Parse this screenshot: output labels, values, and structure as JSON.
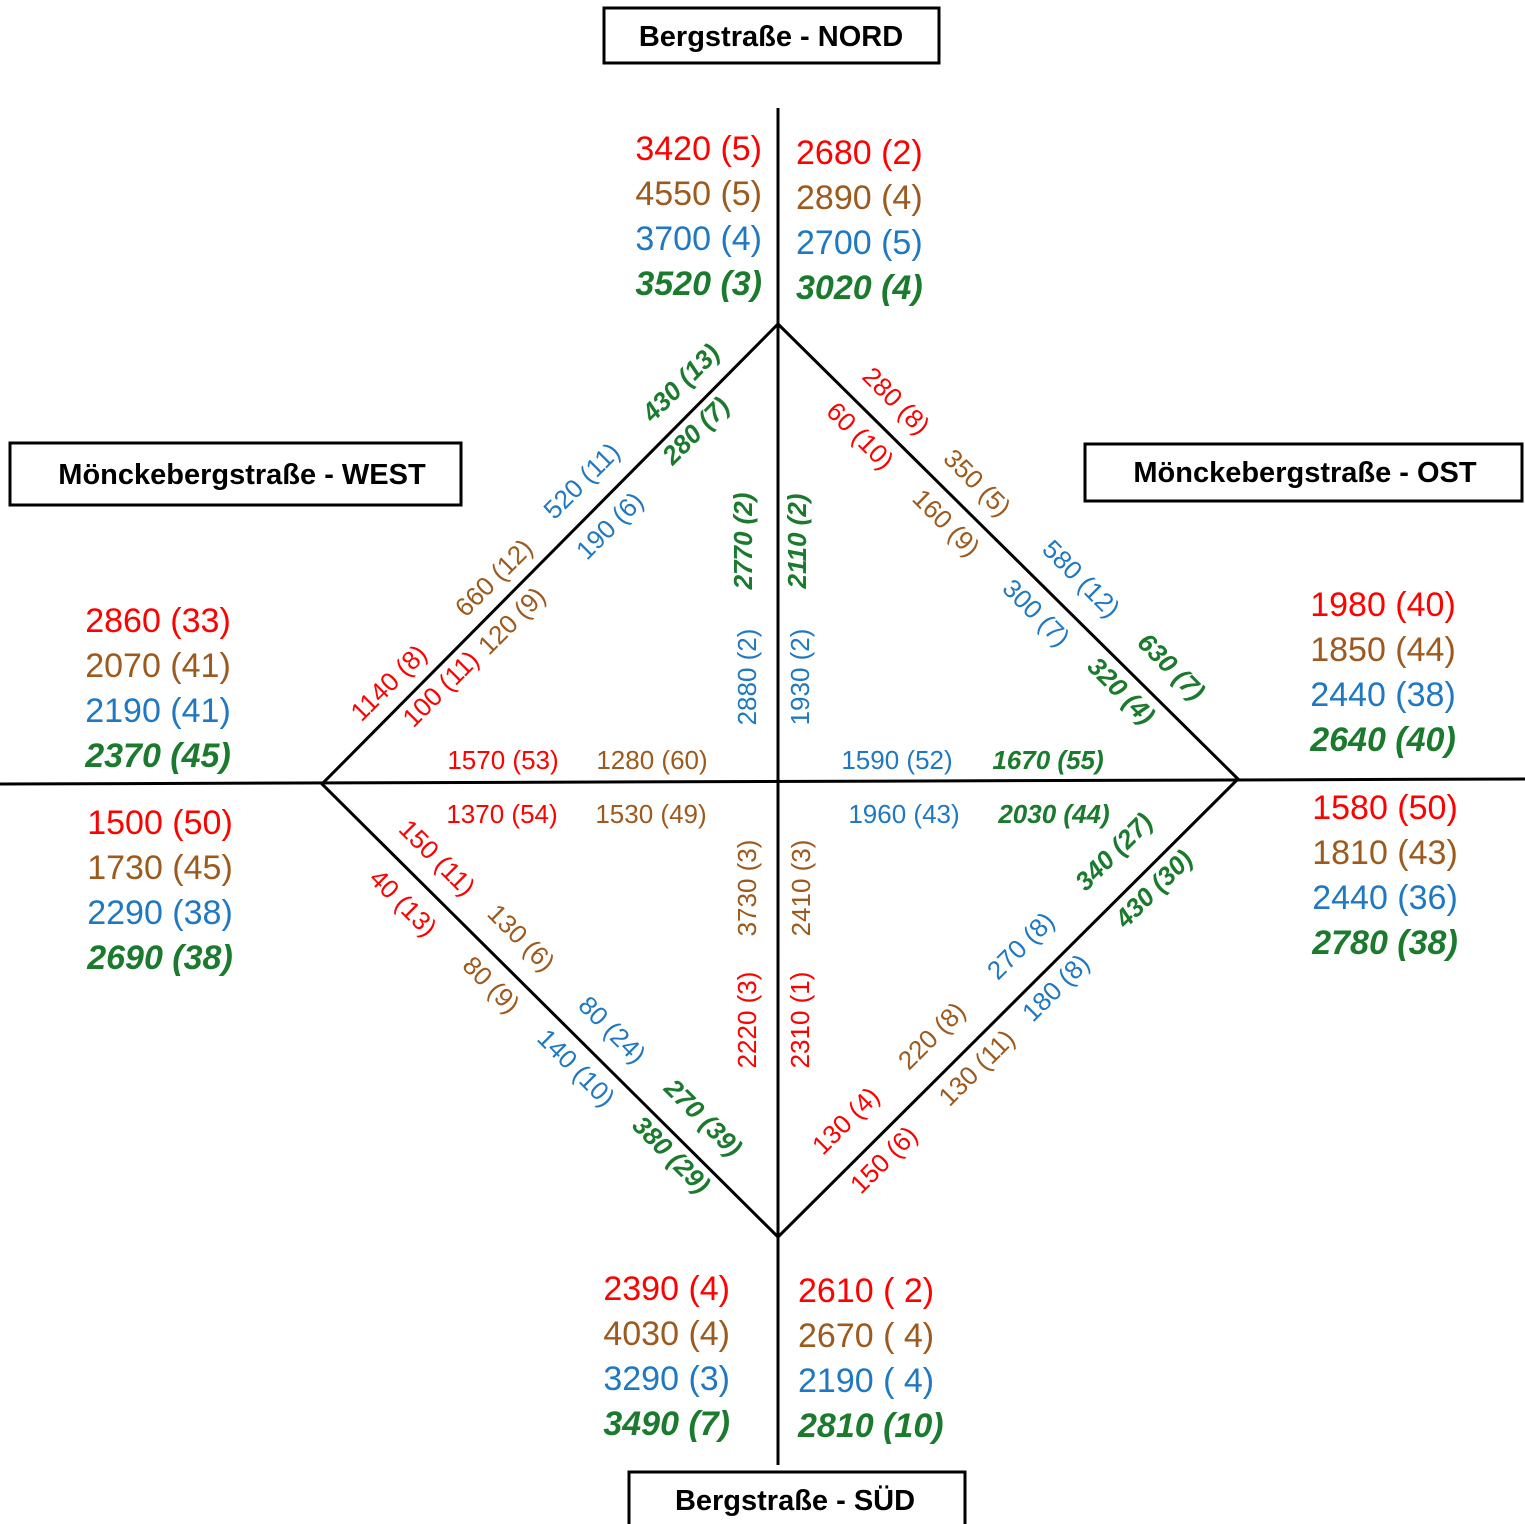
{
  "colors": {
    "red": "#ff0000",
    "brown": "#9c5a1e",
    "blue": "#1f78c1",
    "green": "#1b7a2e",
    "line": "#000000",
    "box_border": "#000000"
  },
  "series_styles": [
    {
      "color": "red",
      "style": "normal"
    },
    {
      "color": "brown",
      "style": "normal"
    },
    {
      "color": "blue",
      "style": "normal"
    },
    {
      "color": "green",
      "style": "bold-italic"
    }
  ],
  "street_labels": {
    "north": "Bergstraße - NORD",
    "south": "Bergstraße - SÜD",
    "west": "Mönckebergstraße - WEST",
    "east": "Mönckebergstraße - OST"
  },
  "approaches": {
    "north_left": [
      "3420 (5)",
      "4550 (5)",
      "3700 (4)",
      "3520 (3)"
    ],
    "north_right": [
      "2680 (2)",
      "2890 (4)",
      "2700 (5)",
      "3020 (4)"
    ],
    "west_top": [
      "2860 (33)",
      "2070 (41)",
      "2190 (41)",
      "2370 (45)"
    ],
    "west_bottom": [
      "1500 (50)",
      "1730 (45)",
      "2290 (38)",
      "2690 (38)"
    ],
    "east_top": [
      "1980 (40)",
      "1850 (44)",
      "2440 (38)",
      "2640 (40)"
    ],
    "east_bottom": [
      "1580 (50)",
      "1810 (43)",
      "2440 (36)",
      "2780 (38)"
    ],
    "south_left": [
      "2390 (4)",
      "4030 (4)",
      "3290 (3)",
      "3490 (7)"
    ],
    "south_right": [
      "2610 (  2)",
      "2670 (  4)",
      "2190 (  4)",
      "2810 (10)"
    ]
  },
  "edges": {
    "nw_outer": [
      "1140 (8)",
      "660 (12)",
      "520 (11)",
      "430 (13)"
    ],
    "nw_inner": [
      "100 (11)",
      "120 (9)",
      "190 (6)",
      "280 (7)"
    ],
    "ne_outer": [
      "280 (8)",
      "350 (5)",
      "580 (12)",
      "630 (7)"
    ],
    "ne_inner": [
      "60 (10)",
      "160 (9)",
      "300 (7)",
      "320 (4)"
    ],
    "sw_outer": [
      "40 (13)",
      "80 (9)",
      "140 (10)",
      "380 (29)"
    ],
    "sw_inner": [
      "150 (11)",
      "130 (6)",
      "80 (24)",
      "270 (39)"
    ],
    "se_outer": [
      "150 (6)",
      "130 (11)",
      "180 (8)",
      "430 (30)"
    ],
    "se_inner": [
      "130 (4)",
      "220 (8)",
      "270 (8)",
      "340 (27)"
    ]
  },
  "center": {
    "west_upper": [
      "1570 (53)",
      "1280 (60)"
    ],
    "west_lower": [
      "1370 (54)",
      "1530 (49)"
    ],
    "east_upper": [
      "1590 (52)",
      "1670 (55)"
    ],
    "east_lower": [
      "1960 (43)",
      "2030 (44)"
    ],
    "north_left": [
      "2880 (2)",
      "2770 (2)"
    ],
    "north_right": [
      "1930 (2)",
      "2110 (2)"
    ],
    "south_left": [
      "2220 (3)",
      "3730 (3)"
    ],
    "south_right": [
      "2310 (1)",
      "2410 (3)"
    ]
  }
}
